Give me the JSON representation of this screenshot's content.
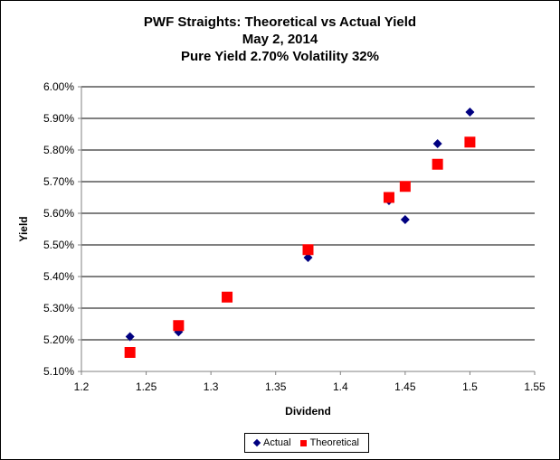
{
  "chart_data": {
    "type": "scatter",
    "title": "PWF Straights: Theoretical vs Actual Yield",
    "subtitle_lines": [
      "May 2, 2014",
      "Pure Yield 2.70% Volatility 32%"
    ],
    "xlabel": "Dividend",
    "ylabel": "Yield",
    "xlim": [
      1.2,
      1.55
    ],
    "ylim": [
      5.1,
      6.0
    ],
    "x_ticks": [
      1.2,
      1.25,
      1.3,
      1.35,
      1.4,
      1.45,
      1.5,
      1.55
    ],
    "x_tick_labels": [
      "1.2",
      "1.25",
      "1.3",
      "1.35",
      "1.4",
      "1.45",
      "1.5",
      "1.55"
    ],
    "y_ticks": [
      5.1,
      5.2,
      5.3,
      5.4,
      5.5,
      5.6,
      5.7,
      5.8,
      5.9,
      6.0
    ],
    "y_tick_labels": [
      "5.10%",
      "5.20%",
      "5.30%",
      "5.40%",
      "5.50%",
      "5.60%",
      "5.70%",
      "5.80%",
      "5.90%",
      "6.00%"
    ],
    "grid": "horizontal",
    "legend_position": "bottom",
    "series": [
      {
        "name": "Actual",
        "marker": "diamond",
        "color": "#000080",
        "points": [
          {
            "x": 1.2375,
            "y": 5.21
          },
          {
            "x": 1.275,
            "y": 5.225
          },
          {
            "x": 1.3125,
            "y": 5.335
          },
          {
            "x": 1.375,
            "y": 5.46
          },
          {
            "x": 1.4375,
            "y": 5.64
          },
          {
            "x": 1.45,
            "y": 5.58
          },
          {
            "x": 1.475,
            "y": 5.82
          },
          {
            "x": 1.5,
            "y": 5.92
          }
        ]
      },
      {
        "name": "Theoretical",
        "marker": "square",
        "color": "#ff0000",
        "points": [
          {
            "x": 1.2375,
            "y": 5.16
          },
          {
            "x": 1.275,
            "y": 5.245
          },
          {
            "x": 1.3125,
            "y": 5.335
          },
          {
            "x": 1.375,
            "y": 5.485
          },
          {
            "x": 1.4375,
            "y": 5.65
          },
          {
            "x": 1.45,
            "y": 5.685
          },
          {
            "x": 1.475,
            "y": 5.755
          },
          {
            "x": 1.5,
            "y": 5.825
          }
        ]
      }
    ]
  }
}
